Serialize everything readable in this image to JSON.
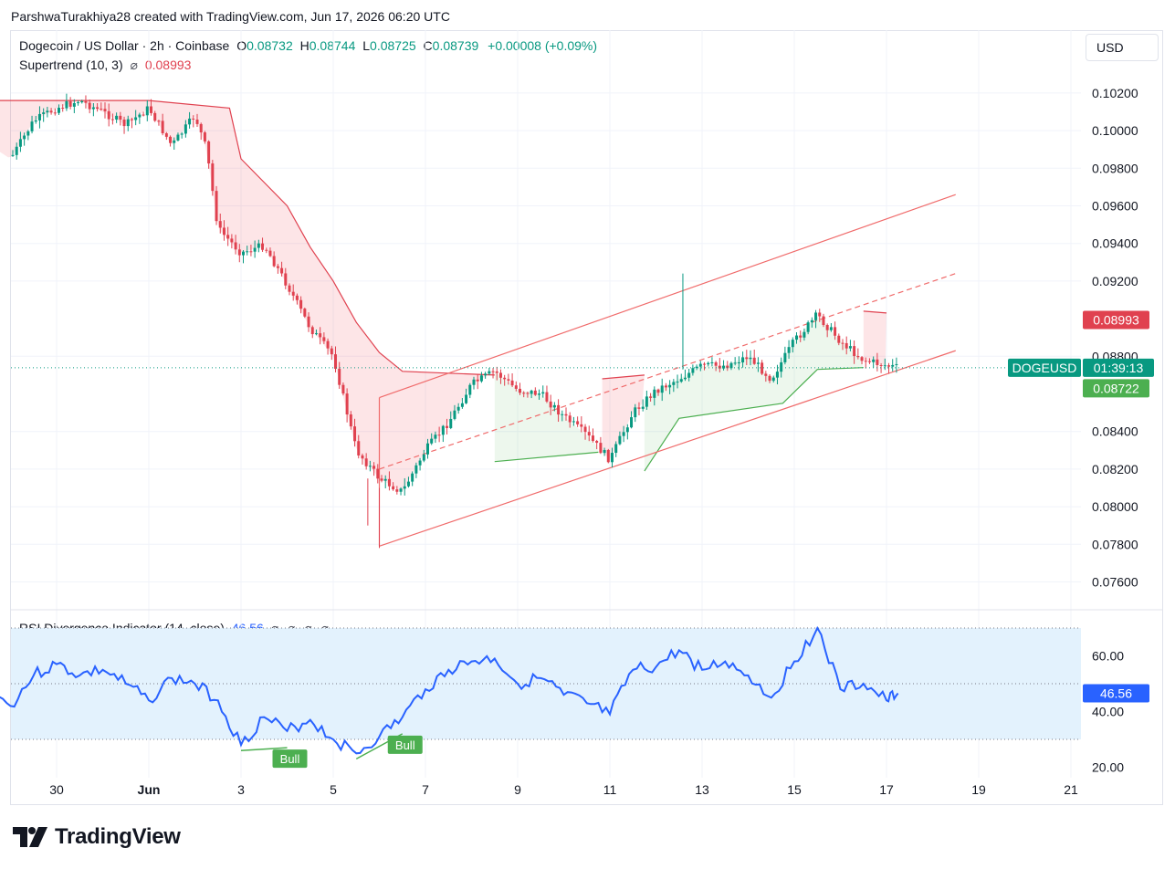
{
  "credit": "ParshwaTurakhiya28 created with TradingView.com, Jun 17, 2026 06:20 UTC",
  "legend": {
    "symbol": "Dogecoin / US Dollar · 2h · Coinbase",
    "o_label": "O",
    "o_value": "0.08732",
    "h_label": "H",
    "h_value": "0.08744",
    "l_label": "L",
    "l_value": "0.08725",
    "c_label": "C",
    "c_value": "0.08739",
    "change": "+0.00008 (+0.09%)",
    "supertrend_label": "Supertrend (10, 3)",
    "supertrend_icon": "⌀",
    "supertrend_value": "0.08993"
  },
  "currency_button": "USD",
  "price_axis": {
    "ticks": [
      "0.10200",
      "0.10000",
      "0.09800",
      "0.09600",
      "0.09400",
      "0.09200",
      "0.08800",
      "0.08400",
      "0.08200",
      "0.08000",
      "0.07800",
      "0.07600"
    ]
  },
  "badges": {
    "supertrend_down": "0.08993",
    "symbol": "DOGEUSD",
    "countdown": "01:39:13",
    "supertrend_up": "0.08722"
  },
  "rsi": {
    "label": "RSI Divergence Indicator (14, close)",
    "value": "46.56",
    "icons": "⌀ ⌀ ⌀ ⌀",
    "ticks": [
      "60.00",
      "40.00",
      "20.00"
    ],
    "badge": "46.56",
    "bull_labels": [
      "Bull",
      "Bull"
    ]
  },
  "time_axis": {
    "ticks": [
      "30",
      "Jun",
      "3",
      "5",
      "7",
      "9",
      "11",
      "13",
      "15",
      "17",
      "19",
      "21"
    ]
  },
  "brand": "TradingView",
  "colors": {
    "up": "#089981",
    "down": "#e0414f",
    "supertrend_down": "#e0414f",
    "supertrend_up": "#4caf50",
    "channel": "#f06b6b",
    "rsi_line": "#2962ff",
    "rsi_band": "#e3f2fd",
    "bull": "#4caf50"
  },
  "chart_data": [
    {
      "type": "candlestick",
      "title": "Dogecoin / US Dollar · 2h · Coinbase",
      "ylim": [
        0.075,
        0.1033
      ],
      "x_range": [
        "May 28",
        "Jun 21"
      ],
      "x_ticks": [
        "30",
        "Jun",
        "3",
        "5",
        "7",
        "9",
        "11",
        "13",
        "15",
        "17",
        "19",
        "21"
      ],
      "y_ticks": [
        0.076,
        0.078,
        0.08,
        0.082,
        0.084,
        0.088,
        0.092,
        0.094,
        0.096,
        0.098,
        0.1,
        0.102
      ],
      "last": {
        "open": 0.08732,
        "high": 0.08744,
        "low": 0.08725,
        "close": 0.08739,
        "change": "+0.00008 (+0.09%)"
      },
      "close_path": [
        {
          "date": "May 28 12:00",
          "close": 0.0993
        },
        {
          "date": "May 29 00:00",
          "close": 0.0985
        },
        {
          "date": "May 29 12:00",
          "close": 0.1005
        },
        {
          "date": "May 30 00:00",
          "close": 0.1012
        },
        {
          "date": "May 30 12:00",
          "close": 0.1016
        },
        {
          "date": "May 31 00:00",
          "close": 0.101
        },
        {
          "date": "May 31 12:00",
          "close": 0.1003
        },
        {
          "date": "Jun 1 00:00",
          "close": 0.1012
        },
        {
          "date": "Jun 1 12:00",
          "close": 0.0992
        },
        {
          "date": "Jun 2 00:00",
          "close": 0.1008
        },
        {
          "date": "Jun 2 06:00",
          "close": 0.099
        },
        {
          "date": "Jun 2 12:00",
          "close": 0.0948
        },
        {
          "date": "Jun 3 00:00",
          "close": 0.0935
        },
        {
          "date": "Jun 3 12:00",
          "close": 0.0939
        },
        {
          "date": "Jun 4 00:00",
          "close": 0.0918
        },
        {
          "date": "Jun 4 12:00",
          "close": 0.0895
        },
        {
          "date": "Jun 5 00:00",
          "close": 0.088
        },
        {
          "date": "Jun 5 12:00",
          "close": 0.083
        },
        {
          "date": "Jun 6 00:00",
          "close": 0.0815
        },
        {
          "date": "Jun 6 12:00",
          "close": 0.0808
        },
        {
          "date": "Jun 7 00:00",
          "close": 0.083
        },
        {
          "date": "Jun 7 12:00",
          "close": 0.0845
        },
        {
          "date": "Jun 8 00:00",
          "close": 0.0865
        },
        {
          "date": "Jun 8 12:00",
          "close": 0.0872
        },
        {
          "date": "Jun 9 00:00",
          "close": 0.0862
        },
        {
          "date": "Jun 9 12:00",
          "close": 0.086
        },
        {
          "date": "Jun 10 00:00",
          "close": 0.0848
        },
        {
          "date": "Jun 10 12:00",
          "close": 0.0838
        },
        {
          "date": "Jun 11 00:00",
          "close": 0.0825
        },
        {
          "date": "Jun 11 12:00",
          "close": 0.085
        },
        {
          "date": "Jun 12 00:00",
          "close": 0.0862
        },
        {
          "date": "Jun 12 12:00",
          "close": 0.0868
        },
        {
          "date": "Jun 13 00:00",
          "close": 0.0875
        },
        {
          "date": "Jun 13 12:00",
          "close": 0.0875
        },
        {
          "date": "Jun 14 00:00",
          "close": 0.088
        },
        {
          "date": "Jun 14 12:00",
          "close": 0.0868
        },
        {
          "date": "Jun 15 00:00",
          "close": 0.0888
        },
        {
          "date": "Jun 15 12:00",
          "close": 0.0902
        },
        {
          "date": "Jun 16 00:00",
          "close": 0.0888
        },
        {
          "date": "Jun 16 12:00",
          "close": 0.0878
        },
        {
          "date": "Jun 17 00:00",
          "close": 0.0875
        },
        {
          "date": "Jun 17 06:00",
          "close": 0.08739
        }
      ],
      "supertrend": {
        "label": "Supertrend (10, 3)",
        "value": 0.08993,
        "down_segments": [
          [
            [
              "May 28",
              0.1016
            ],
            [
              "Jun 1",
              0.1016
            ],
            [
              "Jun 2 18:00",
              0.1012
            ],
            [
              "Jun 3",
              0.0985
            ],
            [
              "Jun 4",
              0.096
            ],
            [
              "Jun 4 12:00",
              0.0938
            ],
            [
              "Jun 5",
              0.092
            ],
            [
              "Jun 5 12:00",
              0.0898
            ],
            [
              "Jun 6",
              0.0882
            ],
            [
              "Jun 6 12:00",
              0.0872
            ],
            [
              "Jun 8 12:00",
              0.087
            ]
          ],
          [
            [
              "Jun 10 20:00",
              0.0868
            ],
            [
              "Jun 11 18:00",
              0.087
            ]
          ],
          [
            [
              "Jun 16 12:00",
              0.0904
            ],
            [
              "Jun 17",
              0.0903
            ]
          ]
        ],
        "up_segments": [
          [
            [
              "Jun 8 12:00",
              0.0824
            ],
            [
              "Jun 10 18:00",
              0.0829
            ]
          ],
          [
            [
              "Jun 11 18:00",
              0.0819
            ],
            [
              "Jun 12 12:00",
              0.0847
            ],
            [
              "Jun 14 18:00",
              0.0855
            ],
            [
              "Jun 15 12:00",
              0.0873
            ],
            [
              "Jun 16 12:00",
              0.0874
            ]
          ]
        ]
      },
      "channel": {
        "lower": [
          [
            "Jun 6",
            0.0779
          ],
          [
            "Jun 18 12:00",
            0.0883
          ]
        ],
        "upper": [
          [
            "Jun 6",
            0.0858
          ],
          [
            "Jun 18 12:00",
            0.0966
          ]
        ],
        "middle": [
          [
            "Jun 6",
            0.082
          ],
          [
            "Jun 18 12:00",
            0.0924
          ]
        ]
      },
      "current_price_line": 0.08739
    },
    {
      "type": "line",
      "title": "RSI Divergence Indicator (14, close)",
      "ylim": [
        15,
        75
      ],
      "y_ticks": [
        60,
        40,
        20
      ],
      "band": [
        30,
        70
      ],
      "midline": 50,
      "series": [
        {
          "values": [
            [
              "May 28",
              47
            ],
            [
              "May 28 12:00",
              48
            ],
            [
              "May 29",
              42
            ],
            [
              "May 29 12:00",
              53
            ],
            [
              "May 30",
              57
            ],
            [
              "May 30 12:00",
              53
            ],
            [
              "May 31",
              55
            ],
            [
              "May 31 12:00",
              50
            ],
            [
              "Jun 1",
              44
            ],
            [
              "Jun 1 12:00",
              52
            ],
            [
              "Jun 2",
              50
            ],
            [
              "Jun 2 12:00",
              44
            ],
            [
              "Jun 3",
              28
            ],
            [
              "Jun 3 12:00",
              38
            ],
            [
              "Jun 4",
              33
            ],
            [
              "Jun 4 12:00",
              37
            ],
            [
              "Jun 5",
              30
            ],
            [
              "Jun 5 12:00",
              25
            ],
            [
              "Jun 6",
              31
            ],
            [
              "Jun 6 12:00",
              38
            ],
            [
              "Jun 7",
              48
            ],
            [
              "Jun 7 12:00",
              55
            ],
            [
              "Jun 8",
              58
            ],
            [
              "Jun 8 12:00",
              59
            ],
            [
              "Jun 9",
              50
            ],
            [
              "Jun 9 12:00",
              52
            ],
            [
              "Jun 10",
              46
            ],
            [
              "Jun 10 12:00",
              43
            ],
            [
              "Jun 11",
              39
            ],
            [
              "Jun 11 12:00",
              55
            ],
            [
              "Jun 12",
              56
            ],
            [
              "Jun 12 12:00",
              62
            ],
            [
              "Jun 13",
              55
            ],
            [
              "Jun 13 12:00",
              58
            ],
            [
              "Jun 14",
              53
            ],
            [
              "Jun 14 12:00",
              45
            ],
            [
              "Jun 15",
              58
            ],
            [
              "Jun 15 12:00",
              70
            ],
            [
              "Jun 16",
              48
            ],
            [
              "Jun 16 12:00",
              50
            ],
            [
              "Jun 17",
              44
            ],
            [
              "Jun 17 06:00",
              46.56
            ]
          ]
        }
      ],
      "divergences": [
        {
          "label": "Bull",
          "from": [
            "Jun 3",
            26
          ],
          "to": [
            "Jun 4",
            27
          ]
        },
        {
          "label": "Bull",
          "from": [
            "Jun 5 12:00",
            23
          ],
          "to": [
            "Jun 6 12:00",
            32
          ]
        }
      ],
      "last_value": 46.56
    }
  ]
}
